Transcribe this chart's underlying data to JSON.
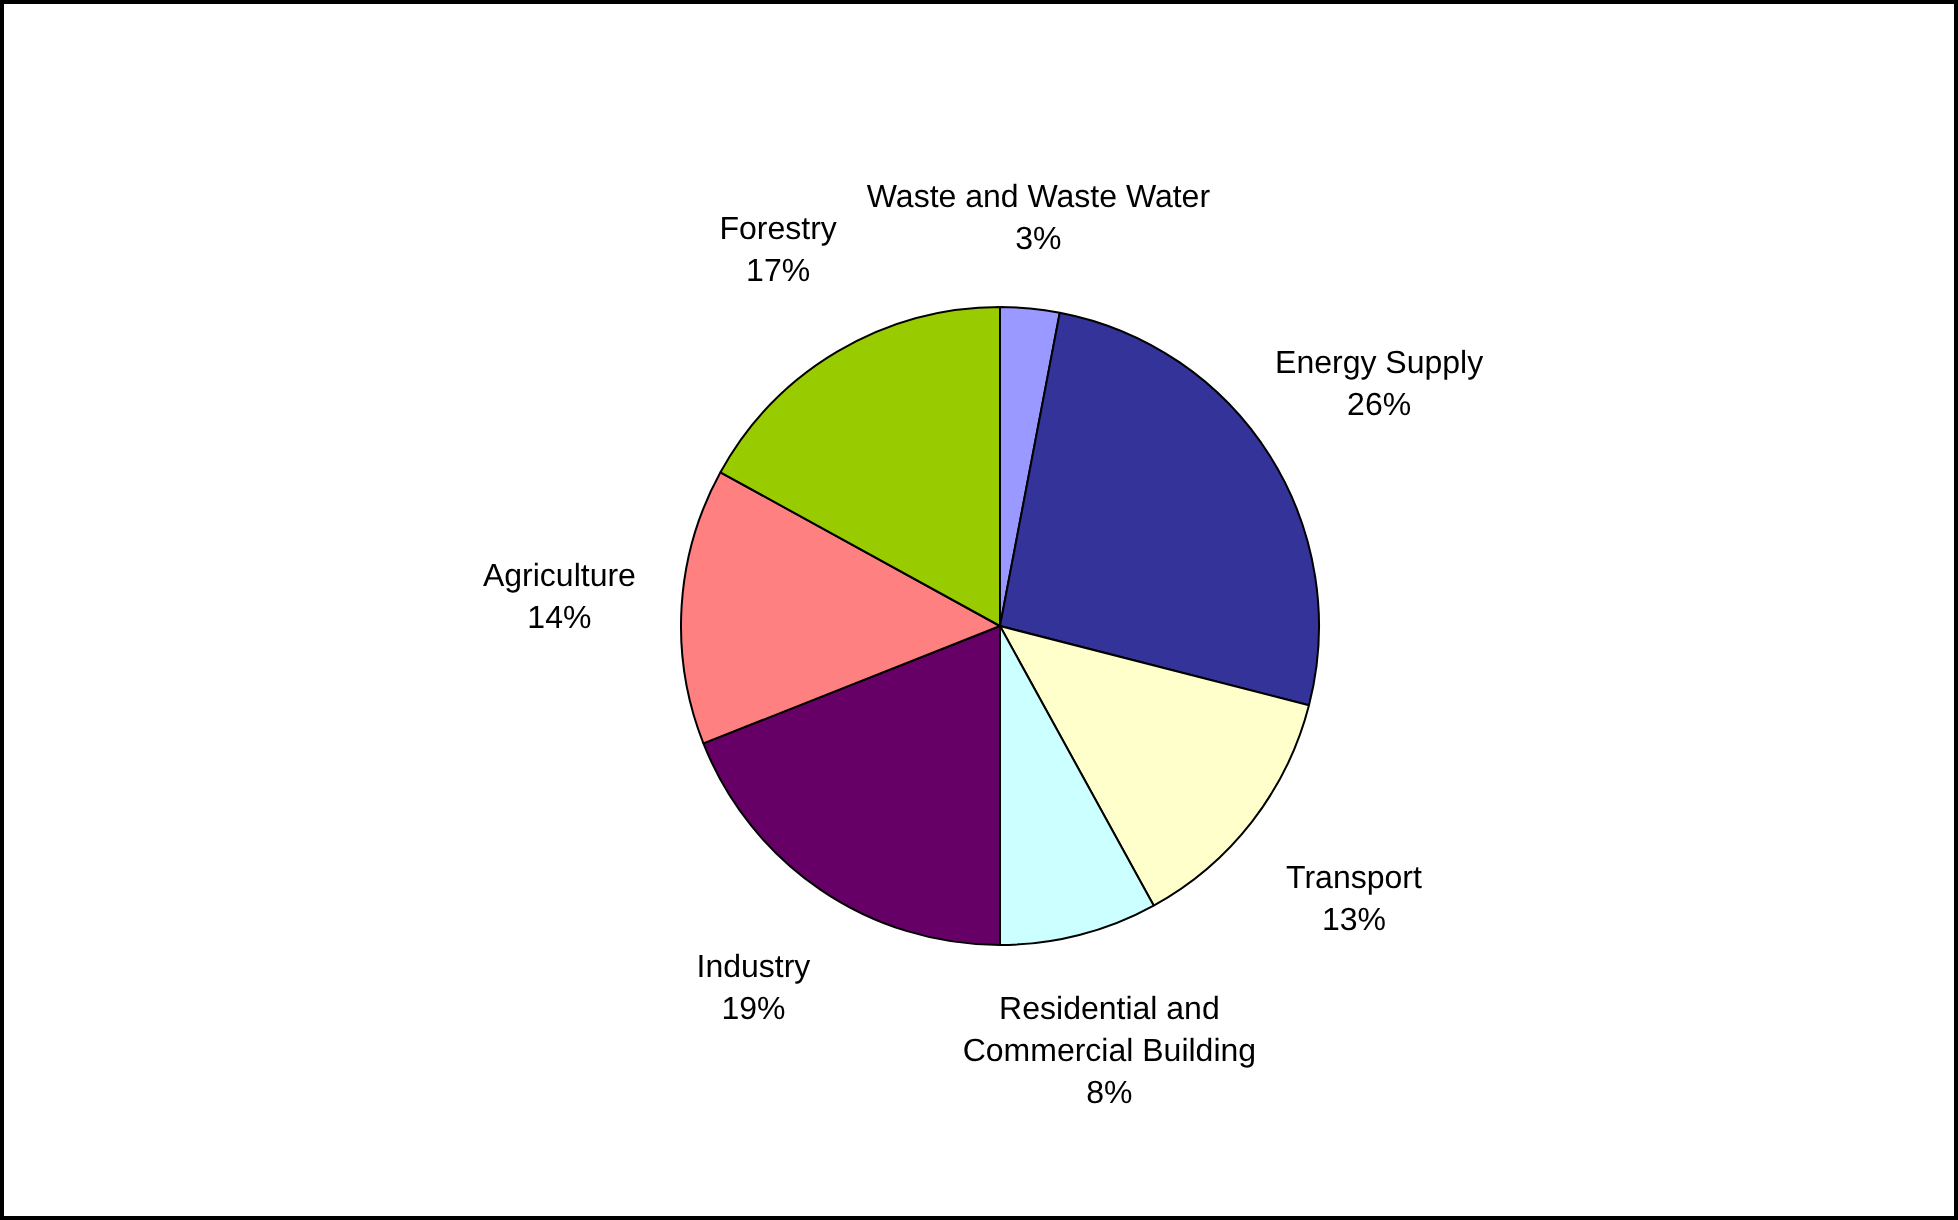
{
  "chart_data": {
    "type": "pie",
    "categories": [
      "Waste and Waste Water",
      "Energy Supply",
      "Transport",
      "Residential and Commercial Building",
      "Industry",
      "Agriculture",
      "Forestry"
    ],
    "values": [
      3,
      26,
      13,
      8,
      19,
      14,
      17
    ],
    "value_labels": [
      "3%",
      "26%",
      "13%",
      "8%",
      "19%",
      "14%",
      "17%"
    ],
    "colors": [
      "#9999ff",
      "#333399",
      "#ffffcc",
      "#ccffff",
      "#660066",
      "#ff8080",
      "#99cc00"
    ],
    "legend": false
  }
}
